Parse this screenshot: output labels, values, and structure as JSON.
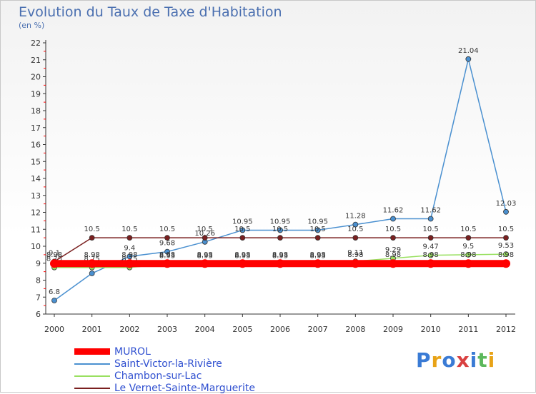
{
  "title": "Evolution du Taux de Taxe d'Habitation",
  "subtitle": "(en %)",
  "logo": [
    "P",
    "r",
    "o",
    "x",
    "i",
    "t",
    "i"
  ],
  "logo_colors": [
    "#3a7bd5",
    "#e8a317",
    "#3a7bd5",
    "#d94040",
    "#3a7bd5",
    "#5cb85c",
    "#e8a317"
  ],
  "chart_data": {
    "type": "line",
    "x": [
      "2000",
      "2001",
      "2002",
      "2003",
      "2004",
      "2005",
      "2006",
      "2007",
      "2008",
      "2009",
      "2010",
      "2011",
      "2012"
    ],
    "ylim": [
      6,
      22
    ],
    "yticks": [
      6,
      7,
      8,
      9,
      10,
      11,
      12,
      13,
      14,
      15,
      16,
      17,
      18,
      19,
      20,
      21,
      22
    ],
    "grid": false,
    "legend_position": "bottom-left",
    "series": [
      {
        "name": "MUROL",
        "color": "#ff0000",
        "values": [
          8.98,
          8.98,
          8.98,
          8.98,
          8.98,
          8.98,
          8.98,
          8.98,
          8.98,
          8.98,
          8.98,
          8.98,
          8.98
        ],
        "labels": [
          "8.98",
          "8.98",
          "8.98",
          "8.98",
          "8.98",
          "8.98",
          "8.98",
          "8.98",
          "8.98",
          "8.98",
          "8.98",
          "8.98",
          "8.98"
        ]
      },
      {
        "name": "Saint-Victor-la-Rivière",
        "color": "#4a90d0",
        "values": [
          6.8,
          8.4,
          9.4,
          9.68,
          10.26,
          10.95,
          10.95,
          10.95,
          11.28,
          11.62,
          11.62,
          21.04,
          12.03
        ],
        "labels": [
          "6.8",
          "8.4",
          "9.4",
          "9.68",
          "10.26",
          "10.95",
          "10.95",
          "10.95",
          "11.28",
          "11.62",
          "11.62",
          "21.04",
          "12.03"
        ]
      },
      {
        "name": "Chambon-sur-Lac",
        "color": "#99e060",
        "values": [
          8.75,
          8.75,
          8.75,
          8.93,
          8.93,
          8.93,
          8.93,
          8.93,
          9.11,
          9.29,
          9.47,
          9.5,
          9.53
        ],
        "labels": [
          "8.75",
          "8.75",
          "8.75",
          "8.93",
          "8.93",
          "8.93",
          "8.93",
          "8.93",
          "9.11",
          "9.29",
          "9.47",
          "9.5",
          "9.53"
        ]
      },
      {
        "name": "Le Vernet-Sainte-Marguerite",
        "color": "#7a2020",
        "values": [
          9.1,
          10.5,
          10.5,
          10.5,
          10.5,
          10.5,
          10.5,
          10.5,
          10.5,
          10.5,
          10.5,
          10.5,
          10.5
        ],
        "labels": [
          "9.1",
          "10.5",
          "10.5",
          "10.5",
          "10.5",
          "10.5",
          "10.5",
          "10.5",
          "10.5",
          "10.5",
          "10.5",
          "10.5",
          "10.5"
        ]
      }
    ]
  }
}
